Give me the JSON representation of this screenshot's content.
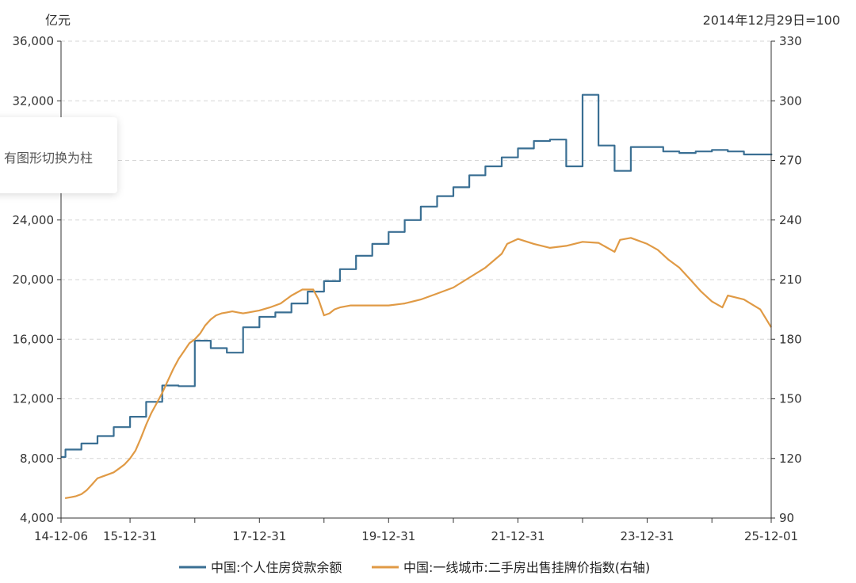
{
  "chart_data": {
    "type": "line",
    "left_axis": {
      "unit_label": "亿元",
      "ylim": [
        4000,
        36000
      ],
      "ticks": [
        4000,
        8000,
        12000,
        16000,
        20000,
        24000,
        28000,
        32000,
        36000
      ],
      "tick_labels": [
        "4,000",
        "8,000",
        "12,000",
        "16,000",
        "20,000",
        "24,000",
        "",
        "32,000",
        "36,000"
      ]
    },
    "right_axis": {
      "unit_label": "2014年12月29日=100",
      "ylim": [
        90,
        330
      ],
      "ticks": [
        90,
        120,
        150,
        180,
        210,
        240,
        270,
        300,
        330
      ],
      "tick_labels": [
        "90",
        "120",
        "150",
        "180",
        "210",
        "240",
        "270",
        "300",
        "330"
      ]
    },
    "x_axis": {
      "start": "2014-12-06",
      "end": "2025-12-01",
      "ticks": [
        "2014-12-06",
        "2015-12-31",
        "2016-12-31",
        "2017-12-31",
        "2018-12-31",
        "2019-12-31",
        "2020-12-31",
        "2021-12-31",
        "2022-12-31",
        "2023-12-31",
        "2024-12-31",
        "2025-12-01"
      ],
      "tick_labels": [
        "14-12-06",
        "15-12-31",
        "",
        "17-12-31",
        "",
        "19-12-31",
        "",
        "21-12-31",
        "",
        "23-12-31",
        "",
        "25-12-01"
      ]
    },
    "grid": "horizontal-dashed",
    "legend_position": "bottom",
    "series": [
      {
        "name": "中国:个人住房贷款余额",
        "axis": "left",
        "color": "#3a6f93",
        "step": true,
        "points": [
          [
            "2014-12-06",
            8100
          ],
          [
            "2014-12-31",
            8600
          ],
          [
            "2015-03-31",
            9000
          ],
          [
            "2015-06-30",
            9500
          ],
          [
            "2015-09-30",
            10100
          ],
          [
            "2015-12-31",
            10800
          ],
          [
            "2016-03-31",
            11800
          ],
          [
            "2016-06-30",
            12900
          ],
          [
            "2016-09-30",
            12850
          ],
          [
            "2016-12-31",
            15900
          ],
          [
            "2017-03-31",
            15400
          ],
          [
            "2017-06-30",
            15100
          ],
          [
            "2017-09-30",
            16800
          ],
          [
            "2017-12-31",
            17500
          ],
          [
            "2018-03-31",
            17800
          ],
          [
            "2018-06-30",
            18400
          ],
          [
            "2018-09-30",
            19200
          ],
          [
            "2018-12-31",
            19900
          ],
          [
            "2019-03-31",
            20700
          ],
          [
            "2019-06-30",
            21600
          ],
          [
            "2019-09-30",
            22400
          ],
          [
            "2019-12-31",
            23200
          ],
          [
            "2020-03-31",
            24000
          ],
          [
            "2020-06-30",
            24900
          ],
          [
            "2020-09-30",
            25600
          ],
          [
            "2020-12-31",
            26200
          ],
          [
            "2021-03-31",
            27000
          ],
          [
            "2021-06-30",
            27600
          ],
          [
            "2021-09-30",
            28200
          ],
          [
            "2021-12-31",
            28800
          ],
          [
            "2022-03-31",
            29300
          ],
          [
            "2022-06-30",
            29400
          ],
          [
            "2022-09-30",
            27600
          ],
          [
            "2022-12-31",
            32400
          ],
          [
            "2023-03-31",
            29000
          ],
          [
            "2023-06-30",
            27300
          ],
          [
            "2023-09-30",
            28900
          ],
          [
            "2023-12-31",
            28900
          ],
          [
            "2024-03-31",
            28600
          ],
          [
            "2024-06-30",
            28500
          ],
          [
            "2024-09-30",
            28600
          ],
          [
            "2024-12-31",
            28700
          ],
          [
            "2025-03-31",
            28600
          ],
          [
            "2025-06-30",
            28400
          ],
          [
            "2025-11-01",
            28400
          ]
        ]
      },
      {
        "name": "中国:一线城市:二手房出售挂牌价指数(右轴)",
        "axis": "right",
        "color": "#e09a45",
        "step": false,
        "points": [
          [
            "2014-12-29",
            100
          ],
          [
            "2015-01-31",
            100.5
          ],
          [
            "2015-02-28",
            101
          ],
          [
            "2015-03-31",
            102
          ],
          [
            "2015-04-30",
            104
          ],
          [
            "2015-05-31",
            107
          ],
          [
            "2015-06-30",
            110
          ],
          [
            "2015-07-31",
            111
          ],
          [
            "2015-08-31",
            112
          ],
          [
            "2015-09-30",
            113
          ],
          [
            "2015-10-31",
            115
          ],
          [
            "2015-11-30",
            117
          ],
          [
            "2015-12-31",
            120
          ],
          [
            "2016-01-31",
            124
          ],
          [
            "2016-02-29",
            130
          ],
          [
            "2016-03-31",
            137
          ],
          [
            "2016-04-30",
            143
          ],
          [
            "2016-05-31",
            148
          ],
          [
            "2016-06-30",
            153
          ],
          [
            "2016-07-31",
            159
          ],
          [
            "2016-08-31",
            165
          ],
          [
            "2016-09-30",
            170
          ],
          [
            "2016-10-31",
            174
          ],
          [
            "2016-11-30",
            178
          ],
          [
            "2016-12-31",
            180
          ],
          [
            "2017-01-31",
            183
          ],
          [
            "2017-02-28",
            187
          ],
          [
            "2017-03-31",
            190
          ],
          [
            "2017-04-30",
            192
          ],
          [
            "2017-05-31",
            193
          ],
          [
            "2017-06-30",
            193.5
          ],
          [
            "2017-07-31",
            194
          ],
          [
            "2017-08-31",
            193.5
          ],
          [
            "2017-09-30",
            193
          ],
          [
            "2017-10-31",
            193.5
          ],
          [
            "2017-12-31",
            194.5
          ],
          [
            "2018-02-28",
            196
          ],
          [
            "2018-04-30",
            198
          ],
          [
            "2018-06-30",
            202
          ],
          [
            "2018-08-31",
            205
          ],
          [
            "2018-10-31",
            205
          ],
          [
            "2018-11-30",
            200
          ],
          [
            "2018-12-31",
            192
          ],
          [
            "2019-01-31",
            193
          ],
          [
            "2019-02-28",
            195
          ],
          [
            "2019-03-31",
            196
          ],
          [
            "2019-05-31",
            197
          ],
          [
            "2019-07-31",
            197
          ],
          [
            "2019-09-30",
            197
          ],
          [
            "2019-12-31",
            197
          ],
          [
            "2020-03-31",
            198
          ],
          [
            "2020-06-30",
            200
          ],
          [
            "2020-09-30",
            203
          ],
          [
            "2020-12-31",
            206
          ],
          [
            "2021-03-31",
            211
          ],
          [
            "2021-06-30",
            216
          ],
          [
            "2021-09-30",
            223
          ],
          [
            "2021-10-31",
            228
          ],
          [
            "2021-12-31",
            230.5
          ],
          [
            "2022-03-31",
            228
          ],
          [
            "2022-06-30",
            226
          ],
          [
            "2022-09-30",
            227
          ],
          [
            "2022-12-31",
            229
          ],
          [
            "2023-03-31",
            228.5
          ],
          [
            "2023-06-30",
            224
          ],
          [
            "2023-07-31",
            230
          ],
          [
            "2023-09-30",
            231
          ],
          [
            "2023-12-31",
            228
          ],
          [
            "2024-02-29",
            225
          ],
          [
            "2024-04-30",
            220
          ],
          [
            "2024-06-30",
            216
          ],
          [
            "2024-08-31",
            210
          ],
          [
            "2024-10-31",
            204
          ],
          [
            "2024-12-31",
            199
          ],
          [
            "2025-02-28",
            196
          ],
          [
            "2025-03-31",
            202
          ],
          [
            "2025-06-30",
            200
          ],
          [
            "2025-09-30",
            195
          ],
          [
            "2025-12-01",
            186
          ]
        ]
      }
    ]
  },
  "tooltip": {
    "text": "有图形切换为柱"
  }
}
